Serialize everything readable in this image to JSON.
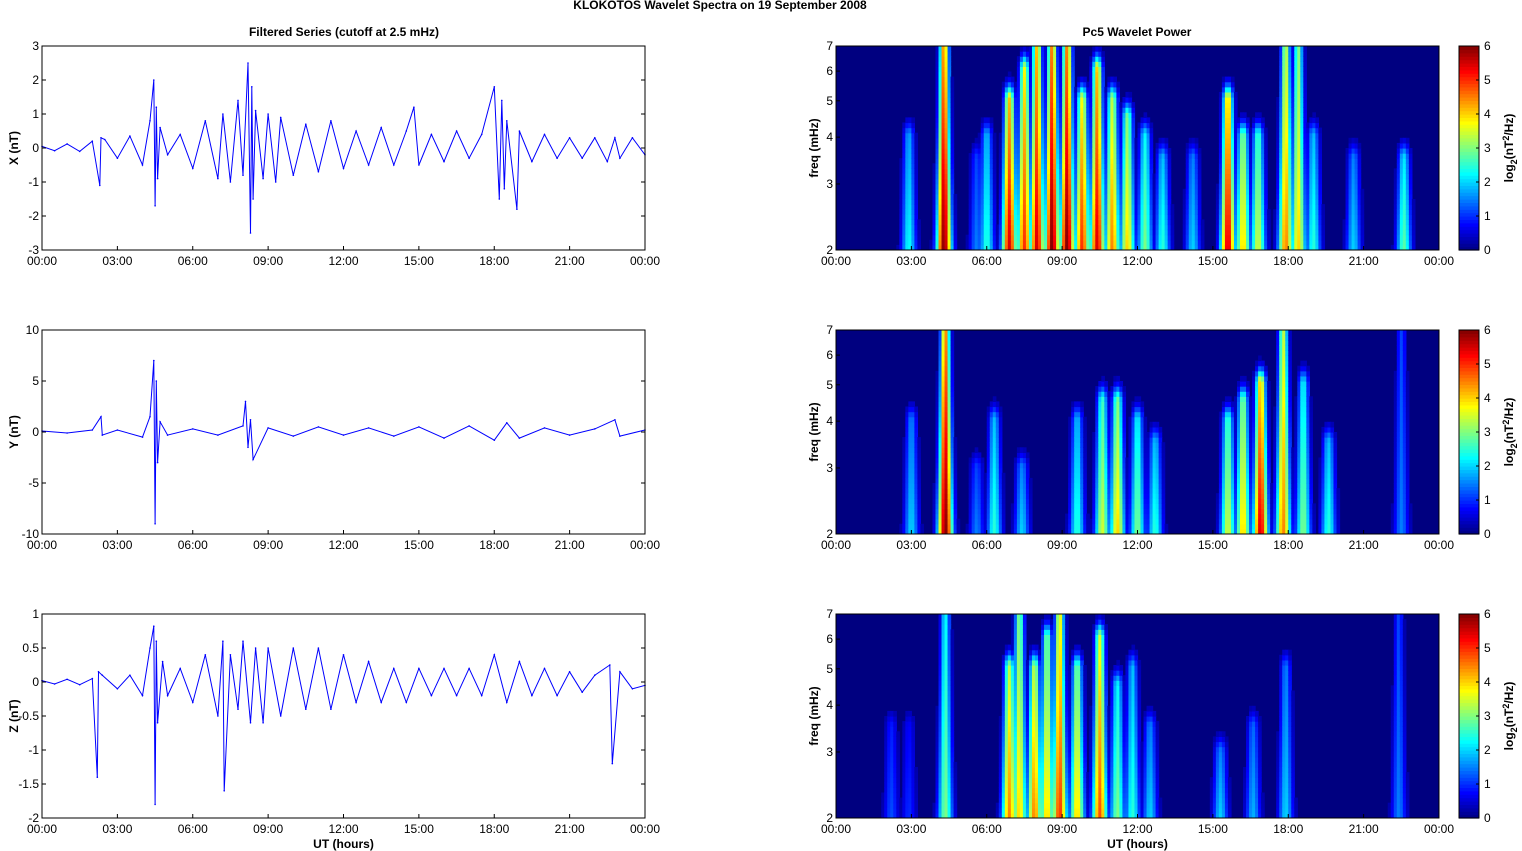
{
  "figure": {
    "title": "KLOKOTOS Wavelet Spectra on 19 September 2008",
    "left_title": "Filtered Series (cutoff at 2.5 mHz)",
    "right_title": "Pc5 Wavelet Power",
    "xlabel": "UT (hours)"
  },
  "chart_data": [
    {
      "type": "line",
      "title": "Filtered Series (cutoff at 2.5 mHz)",
      "ylabel": "X (nT)",
      "xlabel": "",
      "xlim": [
        0,
        24
      ],
      "ylim": [
        -3,
        3
      ],
      "x_ticks": [
        "00:00",
        "03:00",
        "06:00",
        "09:00",
        "12:00",
        "15:00",
        "18:00",
        "21:00",
        "00:00"
      ],
      "y_ticks": [
        "3",
        "2",
        "1",
        "0",
        "-1",
        "-2",
        "-3"
      ],
      "grid": false,
      "color": "#0000ff",
      "x": [
        0,
        0.5,
        1,
        1.5,
        2,
        2.3,
        2.35,
        2.5,
        3,
        3.5,
        4,
        4.3,
        4.45,
        4.5,
        4.55,
        4.6,
        4.7,
        5,
        5.5,
        6,
        6.5,
        7,
        7.2,
        7.5,
        7.8,
        8,
        8.2,
        8.3,
        8.35,
        8.4,
        8.5,
        8.8,
        9,
        9.3,
        9.5,
        10,
        10.5,
        11,
        11.5,
        12,
        12.5,
        13,
        13.5,
        14,
        14.5,
        14.8,
        15,
        15.5,
        16,
        16.5,
        17,
        17.5,
        18,
        18.2,
        18.3,
        18.4,
        18.5,
        18.9,
        19,
        19.5,
        20,
        20.5,
        21,
        21.5,
        22,
        22.5,
        22.8,
        23,
        23.5,
        24
      ],
      "y": [
        0.05,
        -0.08,
        0.12,
        -0.1,
        0.2,
        -1.1,
        0.3,
        0.25,
        -0.3,
        0.35,
        -0.5,
        0.8,
        2.0,
        -1.7,
        1.2,
        -0.9,
        0.6,
        -0.2,
        0.4,
        -0.6,
        0.8,
        -0.9,
        1.0,
        -1.0,
        1.4,
        -0.8,
        2.5,
        -2.5,
        1.8,
        -1.5,
        1.1,
        -0.9,
        1.0,
        -1.0,
        0.9,
        -0.8,
        0.7,
        -0.7,
        0.8,
        -0.6,
        0.5,
        -0.5,
        0.6,
        -0.5,
        0.5,
        1.2,
        -0.5,
        0.4,
        -0.4,
        0.5,
        -0.3,
        0.4,
        1.8,
        -1.5,
        1.4,
        -1.2,
        0.8,
        -1.8,
        0.5,
        -0.4,
        0.4,
        -0.3,
        0.3,
        -0.3,
        0.3,
        -0.4,
        0.3,
        -0.3,
        0.3,
        -0.2
      ]
    },
    {
      "type": "heatmap",
      "title": "Pc5 Wavelet Power",
      "ylabel": "freq (mHz)",
      "xlabel": "",
      "xlim": [
        0,
        24
      ],
      "ylim": [
        2,
        7
      ],
      "y_scale": "log",
      "x_ticks": [
        "00:00",
        "03:00",
        "06:00",
        "09:00",
        "12:00",
        "15:00",
        "18:00",
        "21:00",
        "00:00"
      ],
      "y_ticks": [
        "2",
        "3",
        "4",
        "5",
        "6",
        "7"
      ],
      "colorbar": {
        "label": "log2(nT2/Hz)",
        "ticks": [
          "0",
          "1",
          "2",
          "3",
          "4",
          "5",
          "6"
        ],
        "range": [
          0,
          6
        ],
        "colormap": "jet"
      },
      "bursts": [
        {
          "t": 2.9,
          "f_top": 4.0,
          "peak": 2.3
        },
        {
          "t": 4.3,
          "f_top": 7.0,
          "peak": 6.0
        },
        {
          "t": 5.6,
          "f_top": 3.5,
          "peak": 1.5
        },
        {
          "t": 6.0,
          "f_top": 4.0,
          "peak": 2.5
        },
        {
          "t": 6.9,
          "f_top": 5.0,
          "peak": 5.5
        },
        {
          "t": 7.5,
          "f_top": 6.0,
          "peak": 5.0
        },
        {
          "t": 8.0,
          "f_top": 7.0,
          "peak": 5.5
        },
        {
          "t": 8.6,
          "f_top": 7.0,
          "peak": 6.0
        },
        {
          "t": 9.2,
          "f_top": 7.0,
          "peak": 6.0
        },
        {
          "t": 9.8,
          "f_top": 5.0,
          "peak": 5.0
        },
        {
          "t": 10.4,
          "f_top": 6.0,
          "peak": 5.5
        },
        {
          "t": 11.0,
          "f_top": 5.0,
          "peak": 4.5
        },
        {
          "t": 11.6,
          "f_top": 4.5,
          "peak": 4.0
        },
        {
          "t": 12.3,
          "f_top": 4.0,
          "peak": 3.0
        },
        {
          "t": 13.0,
          "f_top": 3.5,
          "peak": 2.5
        },
        {
          "t": 14.2,
          "f_top": 3.5,
          "peak": 2.0
        },
        {
          "t": 15.6,
          "f_top": 5.0,
          "peak": 5.5
        },
        {
          "t": 16.2,
          "f_top": 4.0,
          "peak": 4.0
        },
        {
          "t": 16.8,
          "f_top": 4.0,
          "peak": 3.5
        },
        {
          "t": 17.9,
          "f_top": 7.0,
          "peak": 4.5
        },
        {
          "t": 18.4,
          "f_top": 7.0,
          "peak": 4.0
        },
        {
          "t": 19.0,
          "f_top": 4.0,
          "peak": 2.5
        },
        {
          "t": 20.6,
          "f_top": 3.5,
          "peak": 2.0
        },
        {
          "t": 22.6,
          "f_top": 3.5,
          "peak": 2.8
        }
      ]
    },
    {
      "type": "line",
      "title": "",
      "ylabel": "Y (nT)",
      "xlabel": "",
      "xlim": [
        0,
        24
      ],
      "ylim": [
        -10,
        10
      ],
      "x_ticks": [
        "00:00",
        "03:00",
        "06:00",
        "09:00",
        "12:00",
        "15:00",
        "18:00",
        "21:00",
        "00:00"
      ],
      "y_ticks": [
        "10",
        "5",
        "0",
        "-5",
        "-10"
      ],
      "grid": false,
      "color": "#0000ff",
      "x": [
        0,
        1,
        2,
        2.35,
        2.4,
        3,
        4,
        4.3,
        4.45,
        4.5,
        4.55,
        4.6,
        4.7,
        5,
        6,
        7,
        8,
        8.1,
        8.2,
        8.3,
        8.4,
        9,
        10,
        11,
        12,
        13,
        14,
        15,
        16,
        17,
        18,
        18.5,
        19,
        20,
        21,
        22,
        22.8,
        23,
        24
      ],
      "y": [
        0.1,
        -0.1,
        0.2,
        1.5,
        -0.3,
        0.2,
        -0.5,
        1.5,
        7.0,
        -9.0,
        5.0,
        -3.0,
        1.0,
        -0.3,
        0.3,
        -0.3,
        0.6,
        3.0,
        -1.5,
        1.2,
        -2.7,
        0.4,
        -0.4,
        0.5,
        -0.3,
        0.4,
        -0.4,
        0.5,
        -0.6,
        0.6,
        -0.8,
        0.9,
        -0.6,
        0.4,
        -0.3,
        0.3,
        1.2,
        -0.4,
        0.2
      ]
    },
    {
      "type": "heatmap",
      "title": "",
      "ylabel": "freq (mHz)",
      "xlabel": "",
      "xlim": [
        0,
        24
      ],
      "ylim": [
        2,
        7
      ],
      "y_scale": "log",
      "x_ticks": [
        "00:00",
        "03:00",
        "06:00",
        "09:00",
        "12:00",
        "15:00",
        "18:00",
        "21:00",
        "00:00"
      ],
      "y_ticks": [
        "2",
        "3",
        "4",
        "5",
        "6",
        "7"
      ],
      "colorbar": {
        "label": "log2(nT2/Hz)",
        "ticks": [
          "0",
          "1",
          "2",
          "3",
          "4",
          "5",
          "6"
        ],
        "range": [
          0,
          6
        ],
        "colormap": "jet"
      },
      "bursts": [
        {
          "t": 3.0,
          "f_top": 4.0,
          "peak": 2.0
        },
        {
          "t": 4.35,
          "f_top": 7.0,
          "peak": 6.0
        },
        {
          "t": 5.6,
          "f_top": 3.0,
          "peak": 1.5
        },
        {
          "t": 6.3,
          "f_top": 4.0,
          "peak": 2.5
        },
        {
          "t": 7.4,
          "f_top": 3.0,
          "peak": 2.0
        },
        {
          "t": 9.6,
          "f_top": 4.0,
          "peak": 2.5
        },
        {
          "t": 10.6,
          "f_top": 4.5,
          "peak": 3.5
        },
        {
          "t": 11.2,
          "f_top": 4.5,
          "peak": 4.0
        },
        {
          "t": 12.0,
          "f_top": 4.0,
          "peak": 3.0
        },
        {
          "t": 12.7,
          "f_top": 3.5,
          "peak": 2.5
        },
        {
          "t": 15.6,
          "f_top": 4.0,
          "peak": 3.5
        },
        {
          "t": 16.2,
          "f_top": 4.5,
          "peak": 4.0
        },
        {
          "t": 16.9,
          "f_top": 5.0,
          "peak": 5.5
        },
        {
          "t": 17.8,
          "f_top": 7.0,
          "peak": 4.5
        },
        {
          "t": 18.6,
          "f_top": 5.0,
          "peak": 3.0
        },
        {
          "t": 19.6,
          "f_top": 3.5,
          "peak": 2.5
        },
        {
          "t": 22.5,
          "f_top": 7.0,
          "peak": 1.5
        }
      ]
    },
    {
      "type": "line",
      "title": "",
      "ylabel": "Z (nT)",
      "xlabel": "UT (hours)",
      "xlim": [
        0,
        24
      ],
      "ylim": [
        -2,
        1
      ],
      "x_ticks": [
        "00:00",
        "03:00",
        "06:00",
        "09:00",
        "12:00",
        "15:00",
        "18:00",
        "21:00",
        "00:00"
      ],
      "y_ticks": [
        "1",
        "0.5",
        "0",
        "-0.5",
        "-1",
        "-1.5",
        "-2"
      ],
      "grid": false,
      "color": "#0000ff",
      "x": [
        0,
        0.5,
        1,
        1.5,
        2,
        2.2,
        2.25,
        2.4,
        3,
        3.5,
        4,
        4.3,
        4.45,
        4.5,
        4.55,
        4.6,
        4.8,
        5,
        5.5,
        6,
        6.5,
        7,
        7.2,
        7.25,
        7.5,
        7.8,
        8,
        8.3,
        8.5,
        8.8,
        9,
        9.5,
        10,
        10.5,
        11,
        11.5,
        12,
        12.5,
        13,
        13.5,
        14,
        14.5,
        15,
        15.5,
        16,
        16.5,
        17,
        17.5,
        18,
        18.5,
        19,
        19.5,
        20,
        20.5,
        21,
        21.5,
        22,
        22.6,
        22.7,
        23,
        23.5,
        24
      ],
      "y": [
        0.02,
        -0.03,
        0.04,
        -0.04,
        0.05,
        -1.4,
        0.15,
        0.1,
        -0.1,
        0.1,
        -0.2,
        0.5,
        0.82,
        -1.8,
        0.6,
        -0.6,
        0.3,
        -0.2,
        0.2,
        -0.3,
        0.4,
        -0.5,
        0.6,
        -1.6,
        0.4,
        -0.4,
        0.6,
        -0.6,
        0.5,
        -0.6,
        0.5,
        -0.5,
        0.5,
        -0.4,
        0.5,
        -0.4,
        0.4,
        -0.3,
        0.3,
        -0.3,
        0.2,
        -0.3,
        0.2,
        -0.2,
        0.2,
        -0.2,
        0.2,
        -0.2,
        0.4,
        -0.3,
        0.3,
        -0.2,
        0.2,
        -0.2,
        0.15,
        -0.15,
        0.1,
        0.25,
        -1.2,
        0.15,
        -0.1,
        -0.05
      ]
    },
    {
      "type": "heatmap",
      "title": "",
      "ylabel": "freq (mHz)",
      "xlabel": "UT (hours)",
      "xlim": [
        0,
        24
      ],
      "ylim": [
        2,
        7
      ],
      "y_scale": "log",
      "x_ticks": [
        "00:00",
        "03:00",
        "06:00",
        "09:00",
        "12:00",
        "15:00",
        "18:00",
        "21:00",
        "00:00"
      ],
      "y_ticks": [
        "2",
        "3",
        "4",
        "5",
        "6",
        "7"
      ],
      "colorbar": {
        "label": "log2(nT2/Hz)",
        "ticks": [
          "0",
          "1",
          "2",
          "3",
          "4",
          "5",
          "6"
        ],
        "range": [
          0,
          6
        ],
        "colormap": "jet"
      },
      "bursts": [
        {
          "t": 2.2,
          "f_top": 3.5,
          "peak": 1.2
        },
        {
          "t": 2.9,
          "f_top": 3.5,
          "peak": 1.0
        },
        {
          "t": 4.35,
          "f_top": 7.0,
          "peak": 3.0
        },
        {
          "t": 6.9,
          "f_top": 5.0,
          "peak": 4.5
        },
        {
          "t": 7.3,
          "f_top": 7.0,
          "peak": 4.0
        },
        {
          "t": 7.9,
          "f_top": 5.0,
          "peak": 4.5
        },
        {
          "t": 8.4,
          "f_top": 6.0,
          "peak": 4.0
        },
        {
          "t": 8.9,
          "f_top": 7.0,
          "peak": 5.0
        },
        {
          "t": 9.6,
          "f_top": 5.0,
          "peak": 4.0
        },
        {
          "t": 10.5,
          "f_top": 6.0,
          "peak": 4.8
        },
        {
          "t": 11.2,
          "f_top": 4.5,
          "peak": 3.0
        },
        {
          "t": 11.8,
          "f_top": 5.0,
          "peak": 2.5
        },
        {
          "t": 12.5,
          "f_top": 3.5,
          "peak": 2.0
        },
        {
          "t": 15.3,
          "f_top": 3.0,
          "peak": 2.0
        },
        {
          "t": 16.6,
          "f_top": 3.5,
          "peak": 1.8
        },
        {
          "t": 17.9,
          "f_top": 5.0,
          "peak": 2.0
        },
        {
          "t": 22.4,
          "f_top": 7.0,
          "peak": 1.5
        }
      ]
    }
  ]
}
